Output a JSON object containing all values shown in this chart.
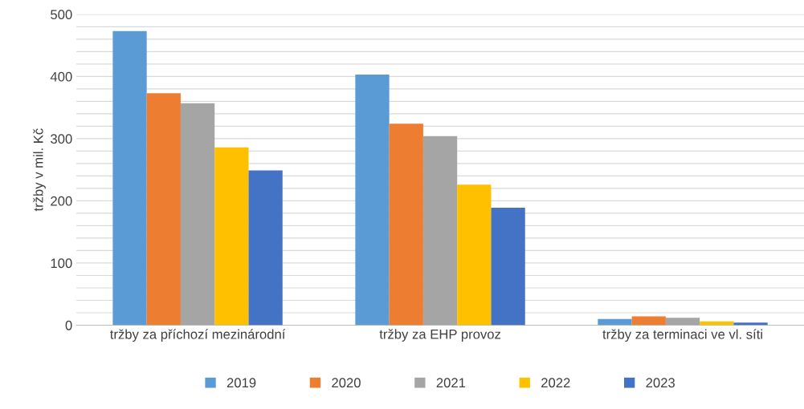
{
  "chart_data": {
    "type": "bar",
    "ylabel": "tržby v mil. Kč",
    "categories": [
      "tržby za příchozí mezinárodní",
      "tržby za EHP provoz",
      "tržby za terminaci ve vl. síti"
    ],
    "series": [
      {
        "name": "2019",
        "color": "#5b9bd5",
        "values": [
          473,
          403,
          10
        ]
      },
      {
        "name": "2020",
        "color": "#ed7d31",
        "values": [
          373,
          324,
          14
        ]
      },
      {
        "name": "2021",
        "color": "#a5a5a5",
        "values": [
          357,
          304,
          12
        ]
      },
      {
        "name": "2022",
        "color": "#ffc000",
        "values": [
          286,
          226,
          6
        ]
      },
      {
        "name": "2023",
        "color": "#4472c4",
        "values": [
          249,
          189,
          4
        ]
      }
    ],
    "ylim": [
      0,
      500
    ],
    "yticks": [
      0,
      {
        "value": 20,
        "label": null
      },
      {
        "value": 40,
        "label": null
      },
      {
        "value": 60,
        "label": null
      },
      {
        "value": 80,
        "label": null
      },
      100,
      {
        "value": 120,
        "label": null
      },
      {
        "value": 140,
        "label": null
      },
      {
        "value": 160,
        "label": null
      },
      {
        "value": 180,
        "label": null
      },
      200,
      {
        "value": 220,
        "label": null
      },
      {
        "value": 240,
        "label": null
      },
      {
        "value": 260,
        "label": null
      },
      {
        "value": 280,
        "label": null
      },
      300,
      {
        "value": 320,
        "label": null
      },
      {
        "value": 340,
        "label": null
      },
      {
        "value": 360,
        "label": null
      },
      {
        "value": 380,
        "label": null
      },
      400,
      {
        "value": 420,
        "label": null
      },
      {
        "value": 440,
        "label": null
      },
      {
        "value": 460,
        "label": null
      },
      {
        "value": 480,
        "label": null
      },
      500
    ],
    "grid": "y",
    "legend": "bottom"
  }
}
